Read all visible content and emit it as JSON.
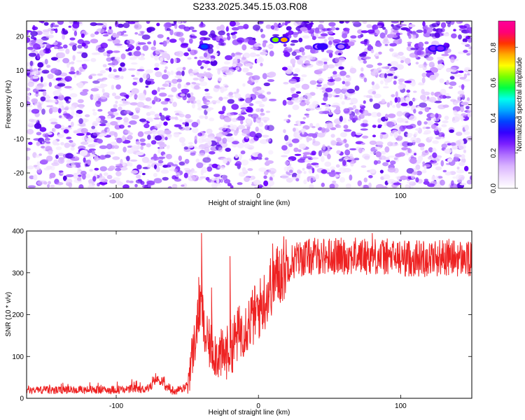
{
  "title": "S233.2025.345.15.03.R08",
  "chart_data": [
    {
      "type": "heatmap",
      "xlabel": "Height of straight line (km)",
      "ylabel": "Frequency (Hz)",
      "xlim": [
        -163,
        150
      ],
      "ylim": [
        -24.5,
        24.5
      ],
      "xticks": [
        -100,
        0,
        100
      ],
      "yticks": [
        -20,
        -10,
        0,
        10,
        20
      ],
      "colorbar": {
        "label": "Normalized spectral amplitude",
        "range": [
          0,
          0.95
        ],
        "ticks": [
          "0.0",
          "0.2",
          "0.4",
          "0.6",
          "0.8"
        ],
        "colors": [
          "#ffffff",
          "#f0ddff",
          "#d9b3ff",
          "#b070ff",
          "#7a1fff",
          "#3300ff",
          "#0044ff",
          "#00aaff",
          "#00ffee",
          "#00ff44",
          "#77ff00",
          "#ffff00",
          "#ffaa00",
          "#ff3300",
          "#ff0077",
          "#ff0099"
        ]
      },
      "hotspots": [
        {
          "x": -38,
          "y": 17,
          "value": 0.35
        },
        {
          "x": 12,
          "y": 19,
          "value": 0.62
        },
        {
          "x": 18,
          "y": 19,
          "value": 0.75
        },
        {
          "x": 42,
          "y": 17,
          "value": 0.22
        },
        {
          "x": 45,
          "y": 17,
          "value": 0.3
        },
        {
          "x": 58,
          "y": 17,
          "value": 0.18
        },
        {
          "x": 123,
          "y": 16.5,
          "value": 0.25
        },
        {
          "x": 128,
          "y": 16.5,
          "value": 0.28
        }
      ]
    },
    {
      "type": "line",
      "xlabel": "Height of straight line (km)",
      "ylabel": "SNR (10 * v/v)",
      "xlim": [
        -163,
        150
      ],
      "ylim": [
        0,
        400
      ],
      "xticks": [
        -100,
        0,
        100
      ],
      "yticks": [
        0,
        100,
        200,
        300,
        400
      ],
      "color": "#ee2222",
      "x": [
        -163,
        -150,
        -130,
        -110,
        -90,
        -80,
        -75,
        -72,
        -68,
        -65,
        -60,
        -55,
        -50,
        -48,
        -45,
        -42,
        -40,
        -38,
        -35,
        -30,
        -25,
        -22,
        -18,
        -15,
        -10,
        -5,
        0,
        5,
        10,
        15,
        20,
        25,
        30,
        40,
        50,
        60,
        70,
        80,
        90,
        100,
        110,
        120,
        130,
        140,
        150
      ],
      "y": [
        20,
        20,
        20,
        20,
        22,
        22,
        30,
        45,
        40,
        25,
        18,
        20,
        30,
        80,
        130,
        200,
        230,
        150,
        130,
        110,
        100,
        110,
        130,
        150,
        170,
        190,
        210,
        240,
        280,
        300,
        320,
        330,
        335,
        340,
        340,
        340,
        340,
        340,
        338,
        335,
        335,
        335,
        338,
        335,
        330
      ],
      "spikes": [
        {
          "x": -40,
          "y": 395
        },
        {
          "x": -42,
          "y": 290
        },
        {
          "x": -33,
          "y": 265
        },
        {
          "x": -20,
          "y": 340
        },
        {
          "x": 10,
          "y": 370
        },
        {
          "x": 80,
          "y": 395
        }
      ]
    }
  ]
}
